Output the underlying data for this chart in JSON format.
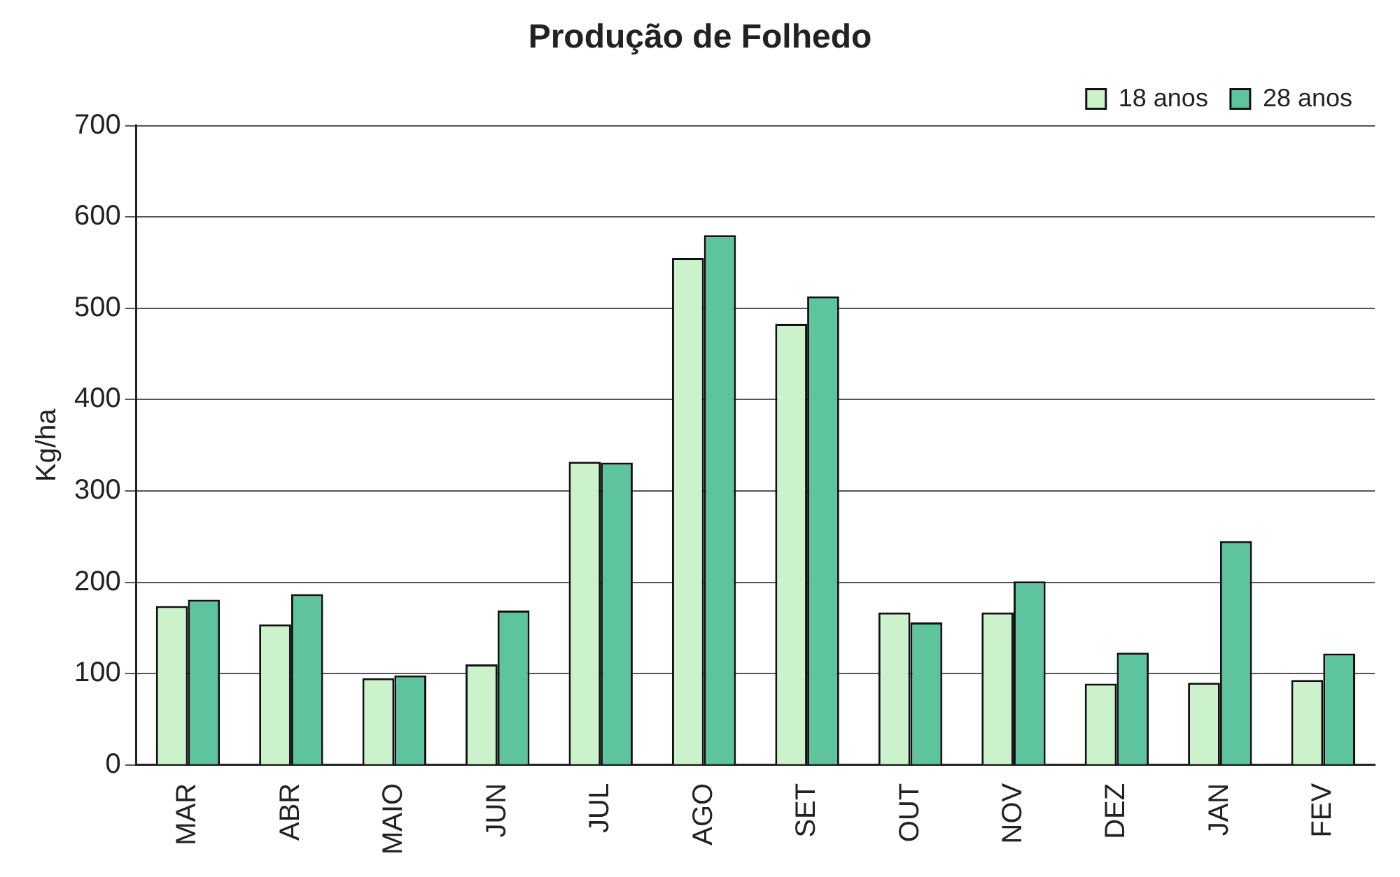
{
  "chart_data": {
    "type": "bar",
    "title": "Produção de Folhedo",
    "ylabel": "Kg/ha",
    "categories": [
      "MAR",
      "ABR",
      "MAIO",
      "JUN",
      "JUL",
      "AGO",
      "SET",
      "OUT",
      "NOV",
      "DEZ",
      "JAN",
      "FEV"
    ],
    "series": [
      {
        "name": "18 anos",
        "color": "#ccf2cc",
        "values": [
          174,
          154,
          95,
          110,
          332,
          555,
          483,
          167,
          167,
          89,
          90,
          93
        ]
      },
      {
        "name": "28 anos",
        "color": "#5ec49e",
        "values": [
          181,
          187,
          98,
          169,
          331,
          580,
          513,
          156,
          201,
          123,
          245,
          122
        ]
      }
    ],
    "ylim": [
      0,
      700
    ],
    "yticks": [
      0,
      100,
      200,
      300,
      400,
      500,
      600,
      700
    ],
    "grid": "y",
    "legend": "top right"
  }
}
